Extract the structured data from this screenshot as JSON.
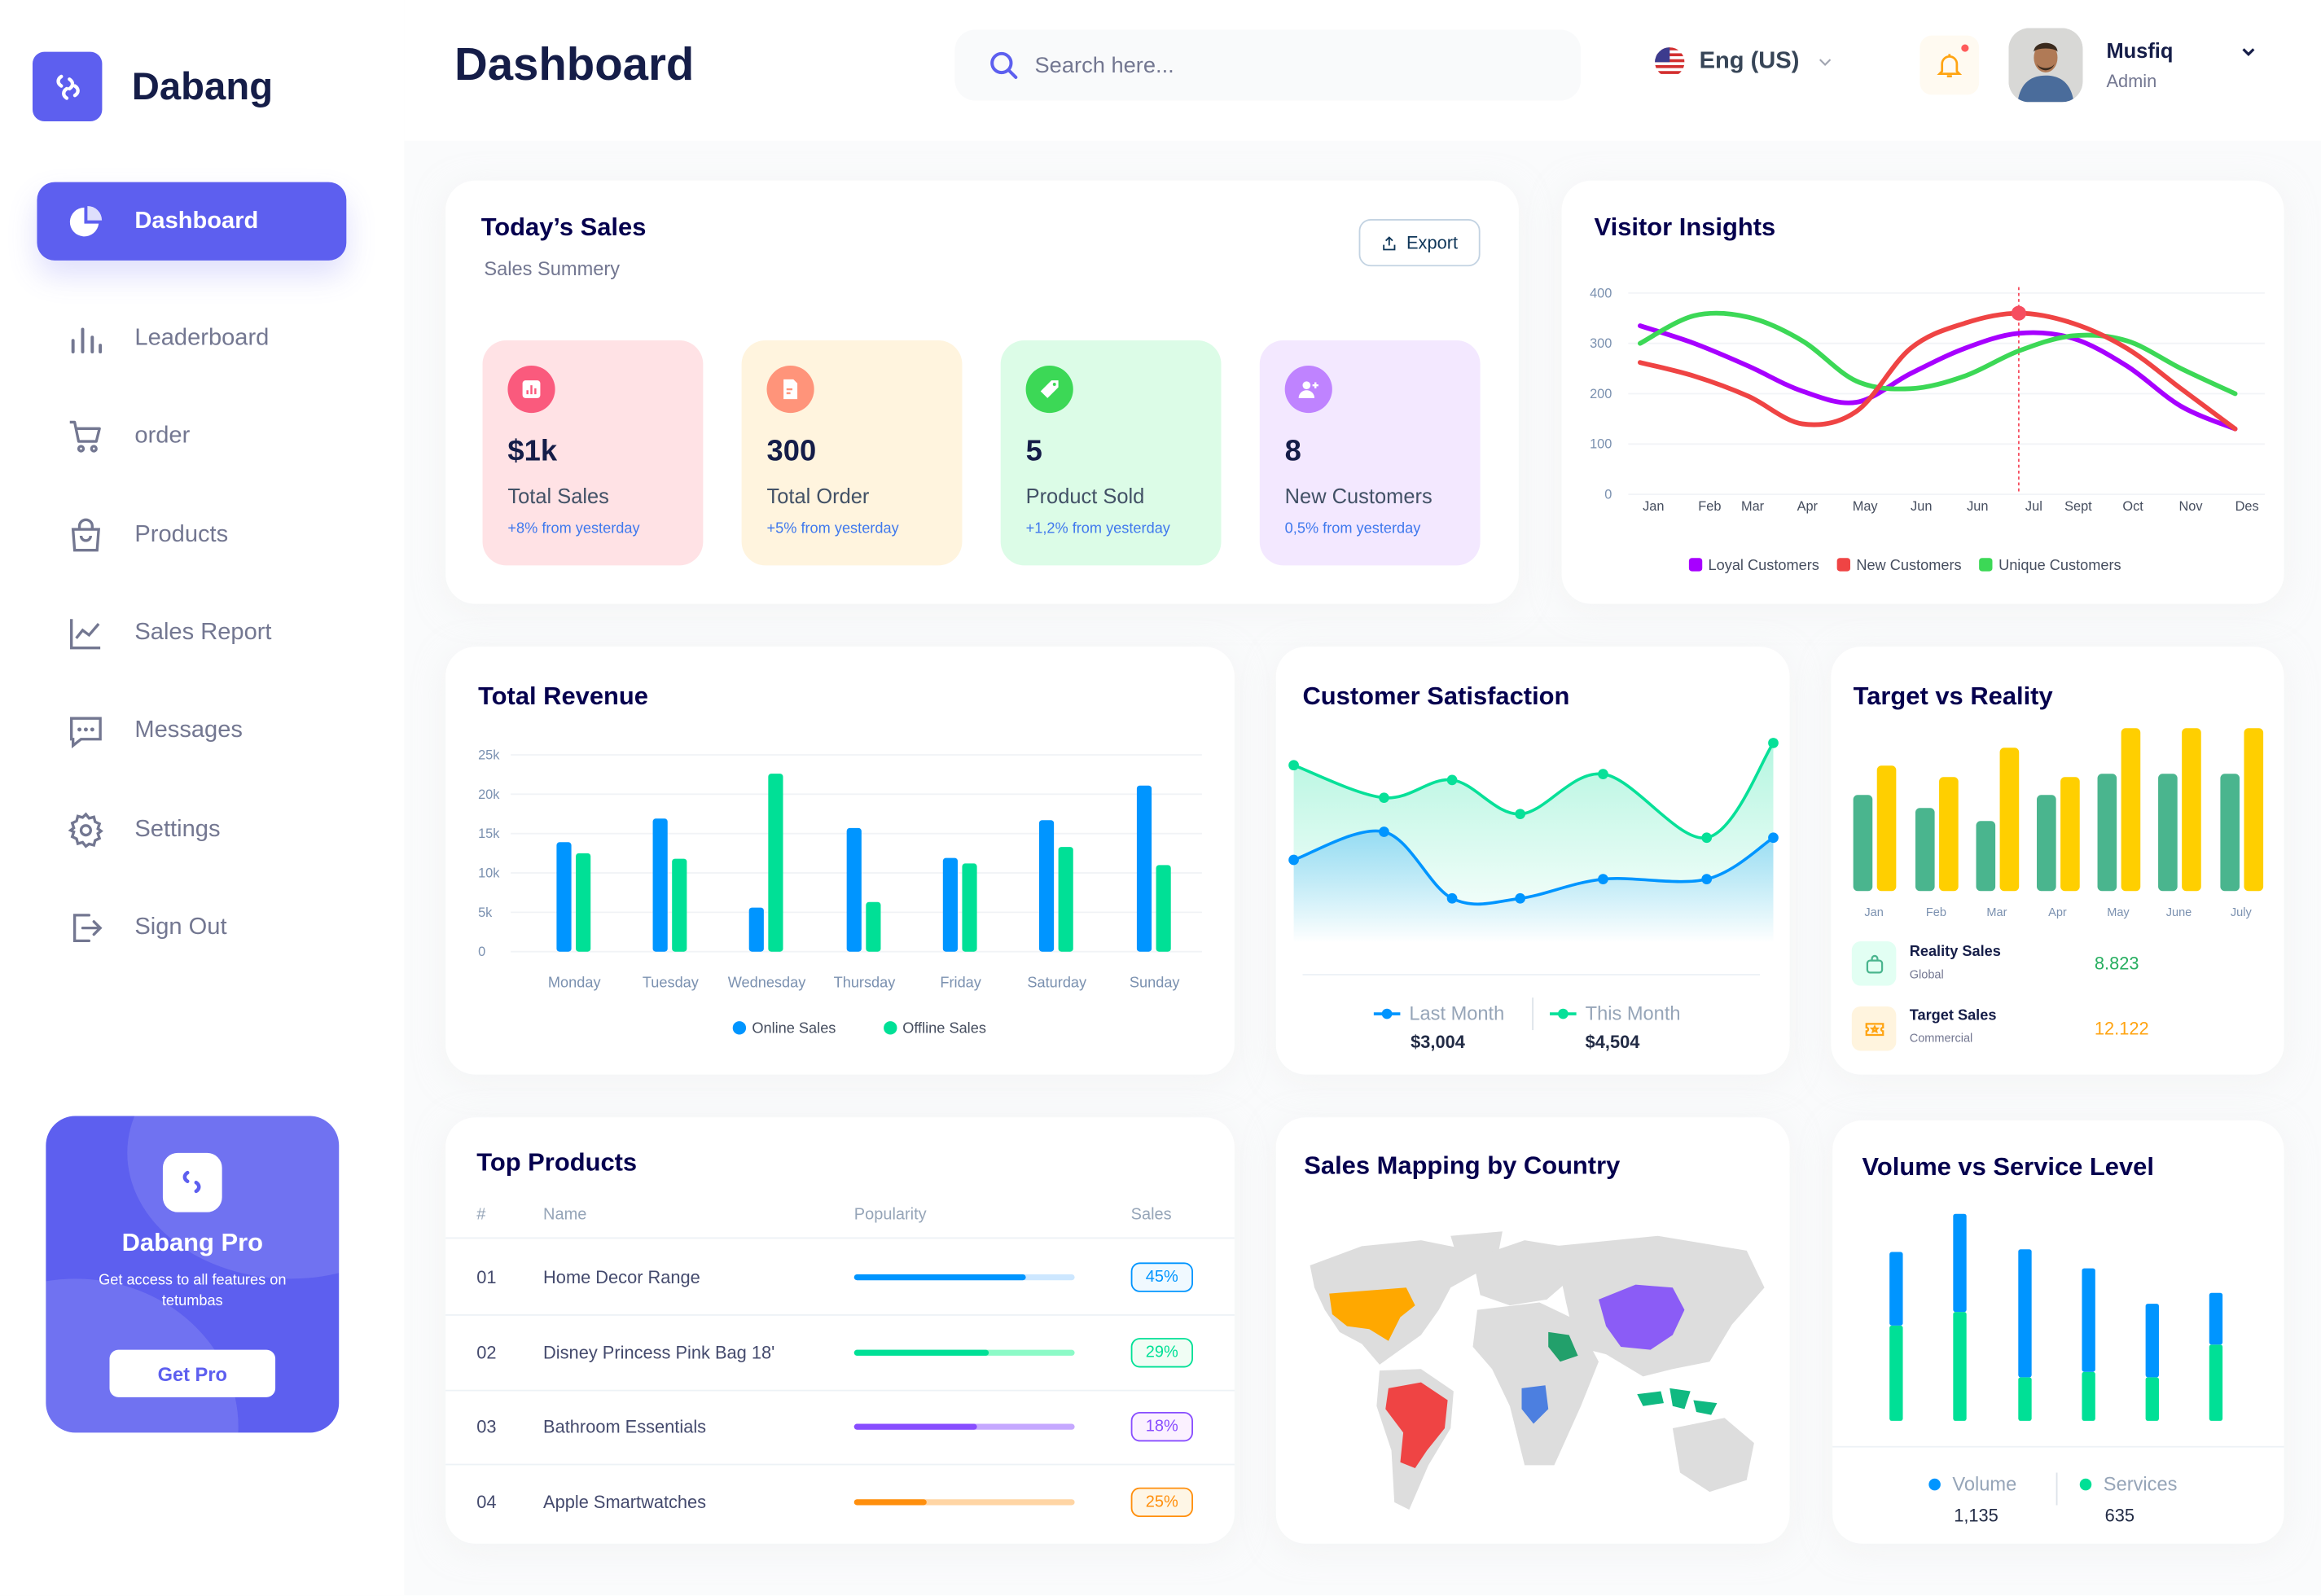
{
  "brand": {
    "name": "Dabang",
    "accent": "#5D5FEF"
  },
  "sidebar": {
    "items": [
      {
        "label": "Dashboard",
        "icon": "pie-chart-icon",
        "active": true
      },
      {
        "label": "Leaderboard",
        "icon": "bar-chart-icon"
      },
      {
        "label": "order",
        "icon": "cart-icon"
      },
      {
        "label": "Products",
        "icon": "shopping-bag-icon"
      },
      {
        "label": "Sales Report",
        "icon": "line-chart-icon"
      },
      {
        "label": "Messages",
        "icon": "message-icon"
      },
      {
        "label": "Settings",
        "icon": "gear-icon"
      },
      {
        "label": "Sign Out",
        "icon": "sign-out-icon"
      }
    ],
    "promo": {
      "title": "Dabang Pro",
      "text": "Get access to all features on tetumbas",
      "button": "Get Pro"
    }
  },
  "header": {
    "title": "Dashboard",
    "search_placeholder": "Search here...",
    "language": "Eng (US)",
    "has_notification": true,
    "user": {
      "name": "Musfiq",
      "role": "Admin"
    }
  },
  "todays_sales": {
    "title": "Today’s Sales",
    "subtitle": "Sales Summery",
    "export_label": "Export",
    "cards": [
      {
        "value": "$1k",
        "label": "Total Sales",
        "change": "+8% from yesterday",
        "icon": "chart-icon",
        "bg": "#FFE2E5",
        "icon_bg": "#FA5A7D"
      },
      {
        "value": "300",
        "label": "Total Order",
        "change": "+5% from yesterday",
        "icon": "document-icon",
        "bg": "#FFF4DE",
        "icon_bg": "#FF947A"
      },
      {
        "value": "5",
        "label": "Product Sold",
        "change": "+1,2% from yesterday",
        "icon": "tag-icon",
        "bg": "#DCFCE7",
        "icon_bg": "#3CD856"
      },
      {
        "value": "8",
        "label": "New Customers",
        "change": "0,5% from yesterday",
        "icon": "add-user-icon",
        "bg": "#F3E8FF",
        "icon_bg": "#BF83FF"
      }
    ]
  },
  "customer_satisfaction": {
    "title": "Customer Satisfaction",
    "last_month_label": "Last Month",
    "last_month_value": "$3,004",
    "this_month_label": "This Month",
    "this_month_value": "$4,504"
  },
  "target_vs_reality": {
    "title": "Target vs Reality",
    "rows": [
      {
        "title": "Reality Sales",
        "subtitle": "Global",
        "value": "8.823",
        "color": "#4AB58E",
        "icon": "shopping-bag-icon"
      },
      {
        "title": "Target Sales",
        "subtitle": "Commercial",
        "value": "12.122",
        "color": "#FFA412",
        "icon": "ticket-icon"
      }
    ]
  },
  "top_products": {
    "title": "Top Products",
    "columns": [
      "#",
      "Name",
      "Popularity",
      "Sales"
    ],
    "rows": [
      {
        "rank": "01",
        "name": "Home Decor Range",
        "popularity": 0.78,
        "sales": "45%",
        "color": "#0095FF",
        "track": "#CDE7FF",
        "badge_bg": "#F0F9FF"
      },
      {
        "rank": "02",
        "name": "Disney Princess Pink Bag 18'",
        "popularity": 0.61,
        "sales": "29%",
        "color": "#00E096",
        "track": "#8CFAC7",
        "badge_bg": "#F0FDF4"
      },
      {
        "rank": "03",
        "name": "Bathroom Essentials",
        "popularity": 0.56,
        "sales": "18%",
        "color": "#884DFF",
        "track": "#C5A8FF",
        "badge_bg": "#FBF1FF"
      },
      {
        "rank": "04",
        "name": "Apple Smartwatches",
        "popularity": 0.33,
        "sales": "25%",
        "color": "#FF8F0D",
        "track": "#FFD5A4",
        "badge_bg": "#FEF6E6"
      }
    ]
  },
  "sales_map": {
    "title": "Sales Mapping by Country",
    "land_color": "#DDDDDD",
    "highlight_colors": [
      "#FFA800",
      "#EF4444",
      "#8B5CF6",
      "#22A06B",
      "#4C7FE0",
      "#10B981"
    ]
  },
  "volume_service": {
    "title": "Volume vs Service Level",
    "volume_label": "Volume",
    "volume_value": "1,135",
    "services_label": "Services",
    "services_value": "635"
  },
  "chart_data": [
    {
      "type": "line",
      "title": "Visitor Insights",
      "categories": [
        "Jan",
        "Feb",
        "Mar",
        "Apr",
        "May",
        "Jun",
        "Jun",
        "Jul",
        "Sept",
        "Oct",
        "Nov",
        "Des"
      ],
      "yticks": [
        "0",
        "100",
        "200",
        "300",
        "400"
      ],
      "ylim": [
        0,
        400
      ],
      "grid": true,
      "legend": "bottom",
      "highlight_category_index": 7,
      "series": [
        {
          "name": "Loyal Customers",
          "color": "#A700FF",
          "values": [
            335,
            300,
            255,
            205,
            183,
            240,
            290,
            320,
            310,
            255,
            175,
            130
          ]
        },
        {
          "name": "New Customers",
          "color": "#EF4444",
          "values": [
            262,
            235,
            195,
            140,
            165,
            290,
            340,
            360,
            340,
            290,
            210,
            130
          ]
        },
        {
          "name": "Unique Customers",
          "color": "#3CD856",
          "values": [
            300,
            355,
            352,
            305,
            225,
            210,
            235,
            285,
            315,
            305,
            250,
            200
          ]
        }
      ]
    },
    {
      "type": "bar",
      "title": "Total Revenue",
      "categories": [
        "Monday",
        "Tuesday",
        "Wednesday",
        "Thursday",
        "Friday",
        "Saturday",
        "Sunday"
      ],
      "yticks": [
        "0",
        "5k",
        "10k",
        "15k",
        "20k",
        "25k"
      ],
      "ylim": [
        0,
        25000
      ],
      "grid": true,
      "legend": "bottom",
      "series": [
        {
          "name": "Online Sales",
          "color": "#0095FF",
          "values": [
            13900,
            16900,
            5600,
            15700,
            11900,
            16700,
            21100
          ]
        },
        {
          "name": "Offline Sales",
          "color": "#00E096",
          "values": [
            12500,
            11800,
            22600,
            6300,
            11200,
            13300,
            11000
          ]
        }
      ]
    },
    {
      "type": "area",
      "title": "Customer Satisfaction",
      "series": [
        {
          "name": "Last Month",
          "color": "#0095FF",
          "values": [
            66,
            85,
            40,
            40,
            53,
            53,
            81
          ]
        },
        {
          "name": "This Month",
          "color": "#07E098",
          "values": [
            130,
            108,
            120,
            97,
            124,
            81,
            145
          ]
        }
      ]
    },
    {
      "type": "bar",
      "title": "Target vs Reality",
      "categories": [
        "Jan",
        "Feb",
        "Mar",
        "Apr",
        "May",
        "June",
        "July"
      ],
      "series": [
        {
          "name": "Reality Sales",
          "color": "#4AB58E",
          "values": [
            5.9,
            5.1,
            4.3,
            5.9,
            7.2,
            7.2,
            7.2
          ]
        },
        {
          "name": "Target Sales",
          "color": "#FFCF00",
          "values": [
            7.7,
            7.0,
            8.8,
            7.0,
            10,
            10,
            10
          ]
        }
      ]
    },
    {
      "type": "bar",
      "stacked": true,
      "title": "Volume vs Service Level",
      "series": [
        {
          "name": "Services",
          "color": "#00E096",
          "values": [
            35,
            40,
            16,
            18,
            16,
            28
          ]
        },
        {
          "name": "Volume",
          "color": "#0095FF",
          "values": [
            27,
            36,
            47,
            38,
            27,
            19
          ]
        }
      ]
    }
  ]
}
